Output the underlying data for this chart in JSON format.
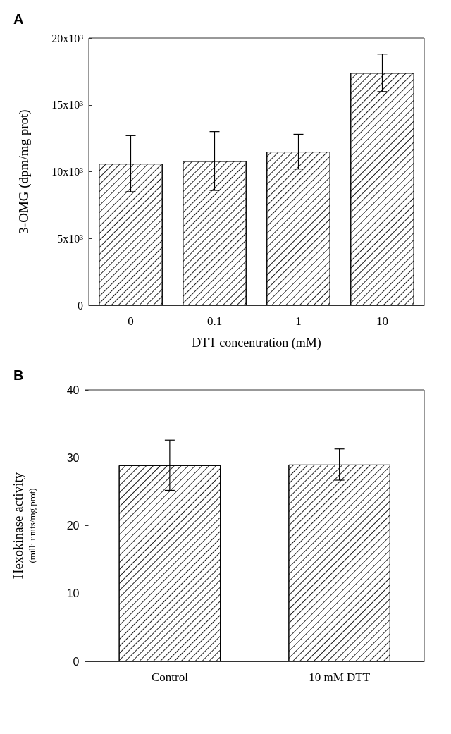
{
  "chart_data": [
    {
      "type": "bar",
      "title": "A",
      "xlabel": "DTT concentration (mM)",
      "ylabel": "3-OMG (dpm/mg prot)",
      "categories": [
        "0",
        "0.1",
        "1",
        "10"
      ],
      "values": [
        10600,
        10800,
        11500,
        17400
      ],
      "errors": [
        2100,
        2200,
        1300,
        1400
      ],
      "color": "#ffffff",
      "ylim": [
        0,
        20000
      ],
      "yticks": [
        0,
        {
          "value": 5000,
          "label": "5x10³"
        },
        {
          "value": 10000,
          "label": "10x10³"
        },
        {
          "value": 15000,
          "label": "15x10³"
        },
        {
          "value": 20000,
          "label": "20x10³"
        }
      ],
      "grid": false
    },
    {
      "type": "bar",
      "title": "B",
      "ylabel": "Hexokinase activity\n(milli units/mg prot)",
      "categories": [
        "Control",
        "10 mM DTT"
      ],
      "values": [
        28.9,
        29.0
      ],
      "errors": [
        3.7,
        2.3
      ],
      "color": "#ffffff",
      "ylim": [
        0,
        40
      ],
      "yticks": [
        0,
        10,
        20,
        30,
        40
      ],
      "grid": false
    }
  ]
}
